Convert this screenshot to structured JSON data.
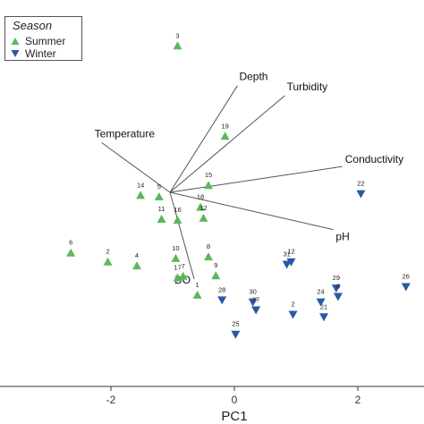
{
  "chart_data": {
    "type": "scatter",
    "xlabel": "PC1",
    "ylabel": "",
    "xlim": [
      -2.9,
      2.9
    ],
    "ylim": [
      -3.6,
      3.5
    ],
    "x_ticks": [
      -2,
      0,
      2
    ],
    "x_tick_labels": [
      "-2",
      "0",
      "2"
    ],
    "legend": {
      "title": "Season",
      "position": "top-left"
    },
    "series": [
      {
        "name": "Summer",
        "marker": "triangle-up",
        "color": "#5cb85c",
        "points": [
          {
            "label": "3",
            "x": -0.92,
            "y": 2.95
          },
          {
            "label": "19",
            "x": -0.15,
            "y": 1.13
          },
          {
            "label": "14",
            "x": -1.52,
            "y": -0.06
          },
          {
            "label": "5",
            "x": -1.22,
            "y": -0.09
          },
          {
            "label": "15",
            "x": -0.42,
            "y": 0.14
          },
          {
            "label": "18",
            "x": -0.55,
            "y": -0.3
          },
          {
            "label": "11",
            "x": -1.18,
            "y": -0.54
          },
          {
            "label": "16",
            "x": -0.92,
            "y": -0.56
          },
          {
            "label": "12",
            "x": -0.5,
            "y": -0.52
          },
          {
            "label": "6",
            "x": -2.65,
            "y": -1.22
          },
          {
            "label": "2",
            "x": -2.05,
            "y": -1.4
          },
          {
            "label": "4",
            "x": -1.58,
            "y": -1.48
          },
          {
            "label": "10",
            "x": -0.95,
            "y": -1.33
          },
          {
            "label": "8",
            "x": -0.42,
            "y": -1.3
          },
          {
            "label": "17",
            "x": -0.92,
            "y": -1.72
          },
          {
            "label": "7",
            "x": -0.83,
            "y": -1.69
          },
          {
            "label": "9",
            "x": -0.3,
            "y": -1.68
          },
          {
            "label": "1",
            "x": -0.6,
            "y": -2.07
          }
        ]
      },
      {
        "name": "Winter",
        "marker": "triangle-down",
        "color": "#2a58a6",
        "points": [
          {
            "label": "22",
            "x": 2.05,
            "y": -0.03
          },
          {
            "label": "31",
            "x": 0.85,
            "y": -1.45
          },
          {
            "label": "12",
            "x": 0.92,
            "y": -1.4
          },
          {
            "label": "29",
            "x": 1.65,
            "y": -1.93
          },
          {
            "label": "26",
            "x": 2.78,
            "y": -1.9
          },
          {
            "label": "8",
            "x": 1.68,
            "y": -2.1
          },
          {
            "label": "28",
            "x": -0.2,
            "y": -2.17
          },
          {
            "label": "30",
            "x": 0.3,
            "y": -2.21
          },
          {
            "label": "24",
            "x": 1.4,
            "y": -2.21
          },
          {
            "label": "27",
            "x": 0.35,
            "y": -2.37
          },
          {
            "label": "2",
            "x": 0.95,
            "y": -2.46
          },
          {
            "label": "21",
            "x": 1.45,
            "y": -2.51
          },
          {
            "label": "25",
            "x": 0.02,
            "y": -2.86
          }
        ]
      }
    ],
    "vectors": [
      {
        "label": "Depth",
        "x": 0.05,
        "y": 2.15,
        "label_pos": "top"
      },
      {
        "label": "Turbidity",
        "x": 0.82,
        "y": 1.95,
        "label_pos": "top"
      },
      {
        "label": "Temperature",
        "x": -2.15,
        "y": 1.0,
        "label_pos": "top-left"
      },
      {
        "label": "Conductivity",
        "x": 1.75,
        "y": 0.52,
        "label_pos": "right"
      },
      {
        "label": "pH",
        "x": 1.6,
        "y": -0.75,
        "label_pos": "bottom-right"
      },
      {
        "label": "DO",
        "x": -0.65,
        "y": -1.75,
        "label_pos": "left"
      }
    ]
  }
}
